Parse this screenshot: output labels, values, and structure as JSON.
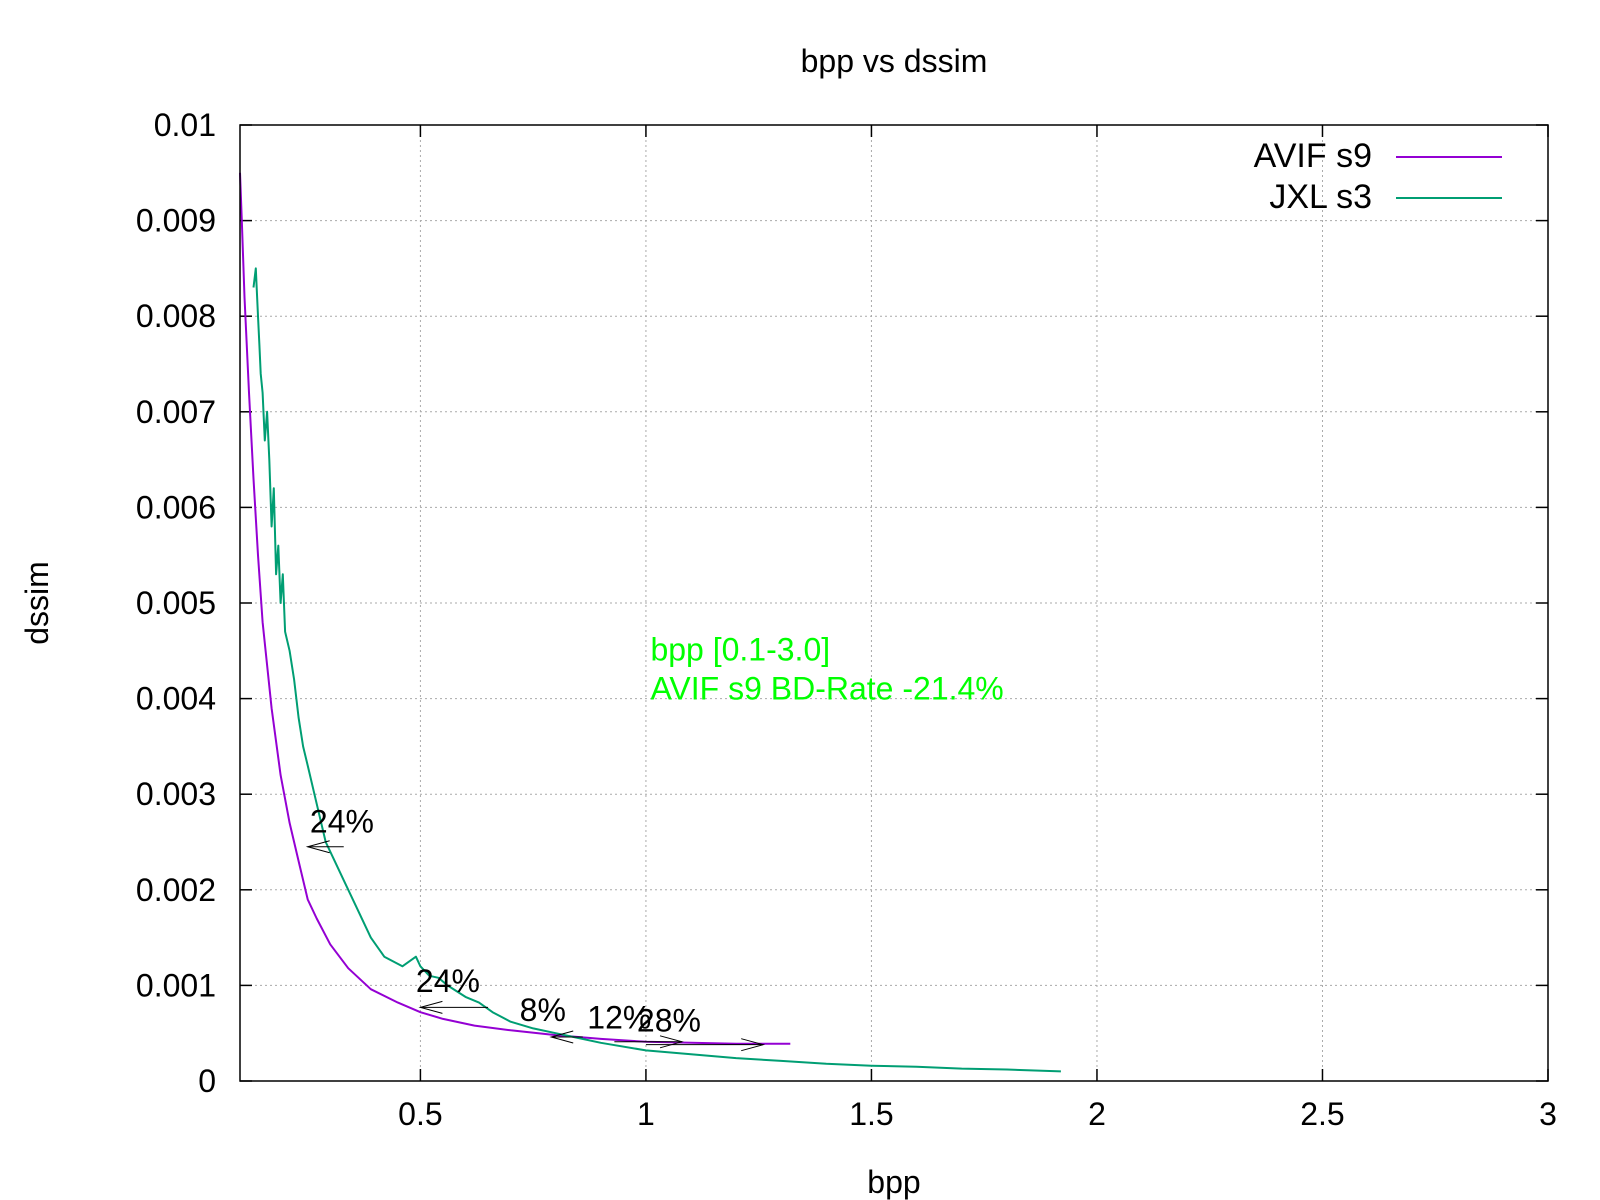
{
  "chart_data": {
    "type": "line",
    "title": "bpp vs dssim",
    "xlabel": "bpp",
    "ylabel": "dssim",
    "xlim": [
      0.1,
      3
    ],
    "ylim": [
      0,
      0.01
    ],
    "x_ticks": [
      {
        "value": 0.5,
        "label": "0.5"
      },
      {
        "value": 1,
        "label": "1"
      },
      {
        "value": 1.5,
        "label": "1.5"
      },
      {
        "value": 2,
        "label": "2"
      },
      {
        "value": 2.5,
        "label": "2.5"
      },
      {
        "value": 3,
        "label": "3"
      }
    ],
    "y_ticks": [
      {
        "value": 0,
        "label": "0"
      },
      {
        "value": 0.001,
        "label": "0.001"
      },
      {
        "value": 0.002,
        "label": "0.002"
      },
      {
        "value": 0.003,
        "label": "0.003"
      },
      {
        "value": 0.004,
        "label": "0.004"
      },
      {
        "value": 0.005,
        "label": "0.005"
      },
      {
        "value": 0.006,
        "label": "0.006"
      },
      {
        "value": 0.007,
        "label": "0.007"
      },
      {
        "value": 0.008,
        "label": "0.008"
      },
      {
        "value": 0.009,
        "label": "0.009"
      },
      {
        "value": 0.01,
        "label": "0.01"
      }
    ],
    "grid": true,
    "legend_position": "top-right",
    "series": [
      {
        "name": "AVIF s9",
        "color": "#9400d3",
        "x": [
          0.1,
          0.104,
          0.11,
          0.12,
          0.13,
          0.14,
          0.15,
          0.17,
          0.19,
          0.21,
          0.23,
          0.25,
          0.27,
          0.3,
          0.34,
          0.39,
          0.45,
          0.5,
          0.55,
          0.62,
          0.7,
          0.8,
          0.9,
          1.0,
          1.1,
          1.2,
          1.32
        ],
        "y": [
          0.0095,
          0.009,
          0.0082,
          0.0072,
          0.0063,
          0.0055,
          0.0048,
          0.0039,
          0.0032,
          0.0027,
          0.0023,
          0.0019,
          0.0017,
          0.00143,
          0.00118,
          0.00096,
          0.00082,
          0.00072,
          0.00065,
          0.00058,
          0.00053,
          0.00048,
          0.00044,
          0.00041,
          0.0004,
          0.00039,
          0.00039
        ]
      },
      {
        "name": "JXL s3",
        "color": "#009e73",
        "x": [
          0.13,
          0.135,
          0.14,
          0.143,
          0.146,
          0.15,
          0.155,
          0.16,
          0.165,
          0.17,
          0.175,
          0.18,
          0.185,
          0.19,
          0.195,
          0.2,
          0.21,
          0.22,
          0.23,
          0.24,
          0.25,
          0.27,
          0.29,
          0.31,
          0.33,
          0.36,
          0.39,
          0.42,
          0.46,
          0.49,
          0.5,
          0.52,
          0.54,
          0.56,
          0.58,
          0.6,
          0.63,
          0.66,
          0.7,
          0.75,
          0.8,
          0.85,
          0.9,
          1.0,
          1.1,
          1.2,
          1.3,
          1.4,
          1.5,
          1.6,
          1.7,
          1.8,
          1.92
        ],
        "y": [
          0.0083,
          0.0085,
          0.008,
          0.0077,
          0.0074,
          0.0072,
          0.0067,
          0.007,
          0.0065,
          0.0058,
          0.0062,
          0.0053,
          0.0056,
          0.005,
          0.0053,
          0.0047,
          0.0045,
          0.0042,
          0.0038,
          0.0035,
          0.0033,
          0.0029,
          0.0025,
          0.0023,
          0.0021,
          0.0018,
          0.0015,
          0.0013,
          0.0012,
          0.0013,
          0.0012,
          0.0011,
          0.00108,
          0.001,
          0.00094,
          0.00088,
          0.00082,
          0.00072,
          0.00062,
          0.00055,
          0.0005,
          0.00045,
          0.0004,
          0.00032,
          0.00028,
          0.00024,
          0.00021,
          0.00018,
          0.00016,
          0.00015,
          0.00013,
          0.00012,
          0.0001
        ]
      }
    ],
    "annotations": [
      {
        "text": "24%",
        "x": 0.255,
        "y": 0.0026,
        "arrow_from": [
          0.33,
          0.00245
        ],
        "arrow_to": [
          0.25,
          0.00245
        ]
      },
      {
        "text": "24%",
        "x": 0.49,
        "y": 0.00093,
        "arrow_from": [
          0.65,
          0.00077
        ],
        "arrow_to": [
          0.5,
          0.00077
        ]
      },
      {
        "text": "8%",
        "x": 0.72,
        "y": 0.00063,
        "arrow_from": [
          0.86,
          0.00046
        ],
        "arrow_to": [
          0.79,
          0.00046
        ]
      },
      {
        "text": "12%",
        "x": 0.87,
        "y": 0.00055,
        "arrow_from": [
          0.93,
          0.00041
        ],
        "arrow_to": [
          1.08,
          0.00041
        ]
      },
      {
        "text": "28%",
        "x": 0.98,
        "y": 0.00052,
        "arrow_from": [
          1.0,
          0.00038
        ],
        "arrow_to": [
          1.26,
          0.00038
        ]
      }
    ],
    "bd_rate_note": {
      "lines": [
        "bpp [0.1-3.0]",
        "AVIF s9 BD-Rate -21.4%"
      ],
      "x": 1.01,
      "y": 0.0044,
      "color": "#00ff00"
    }
  }
}
